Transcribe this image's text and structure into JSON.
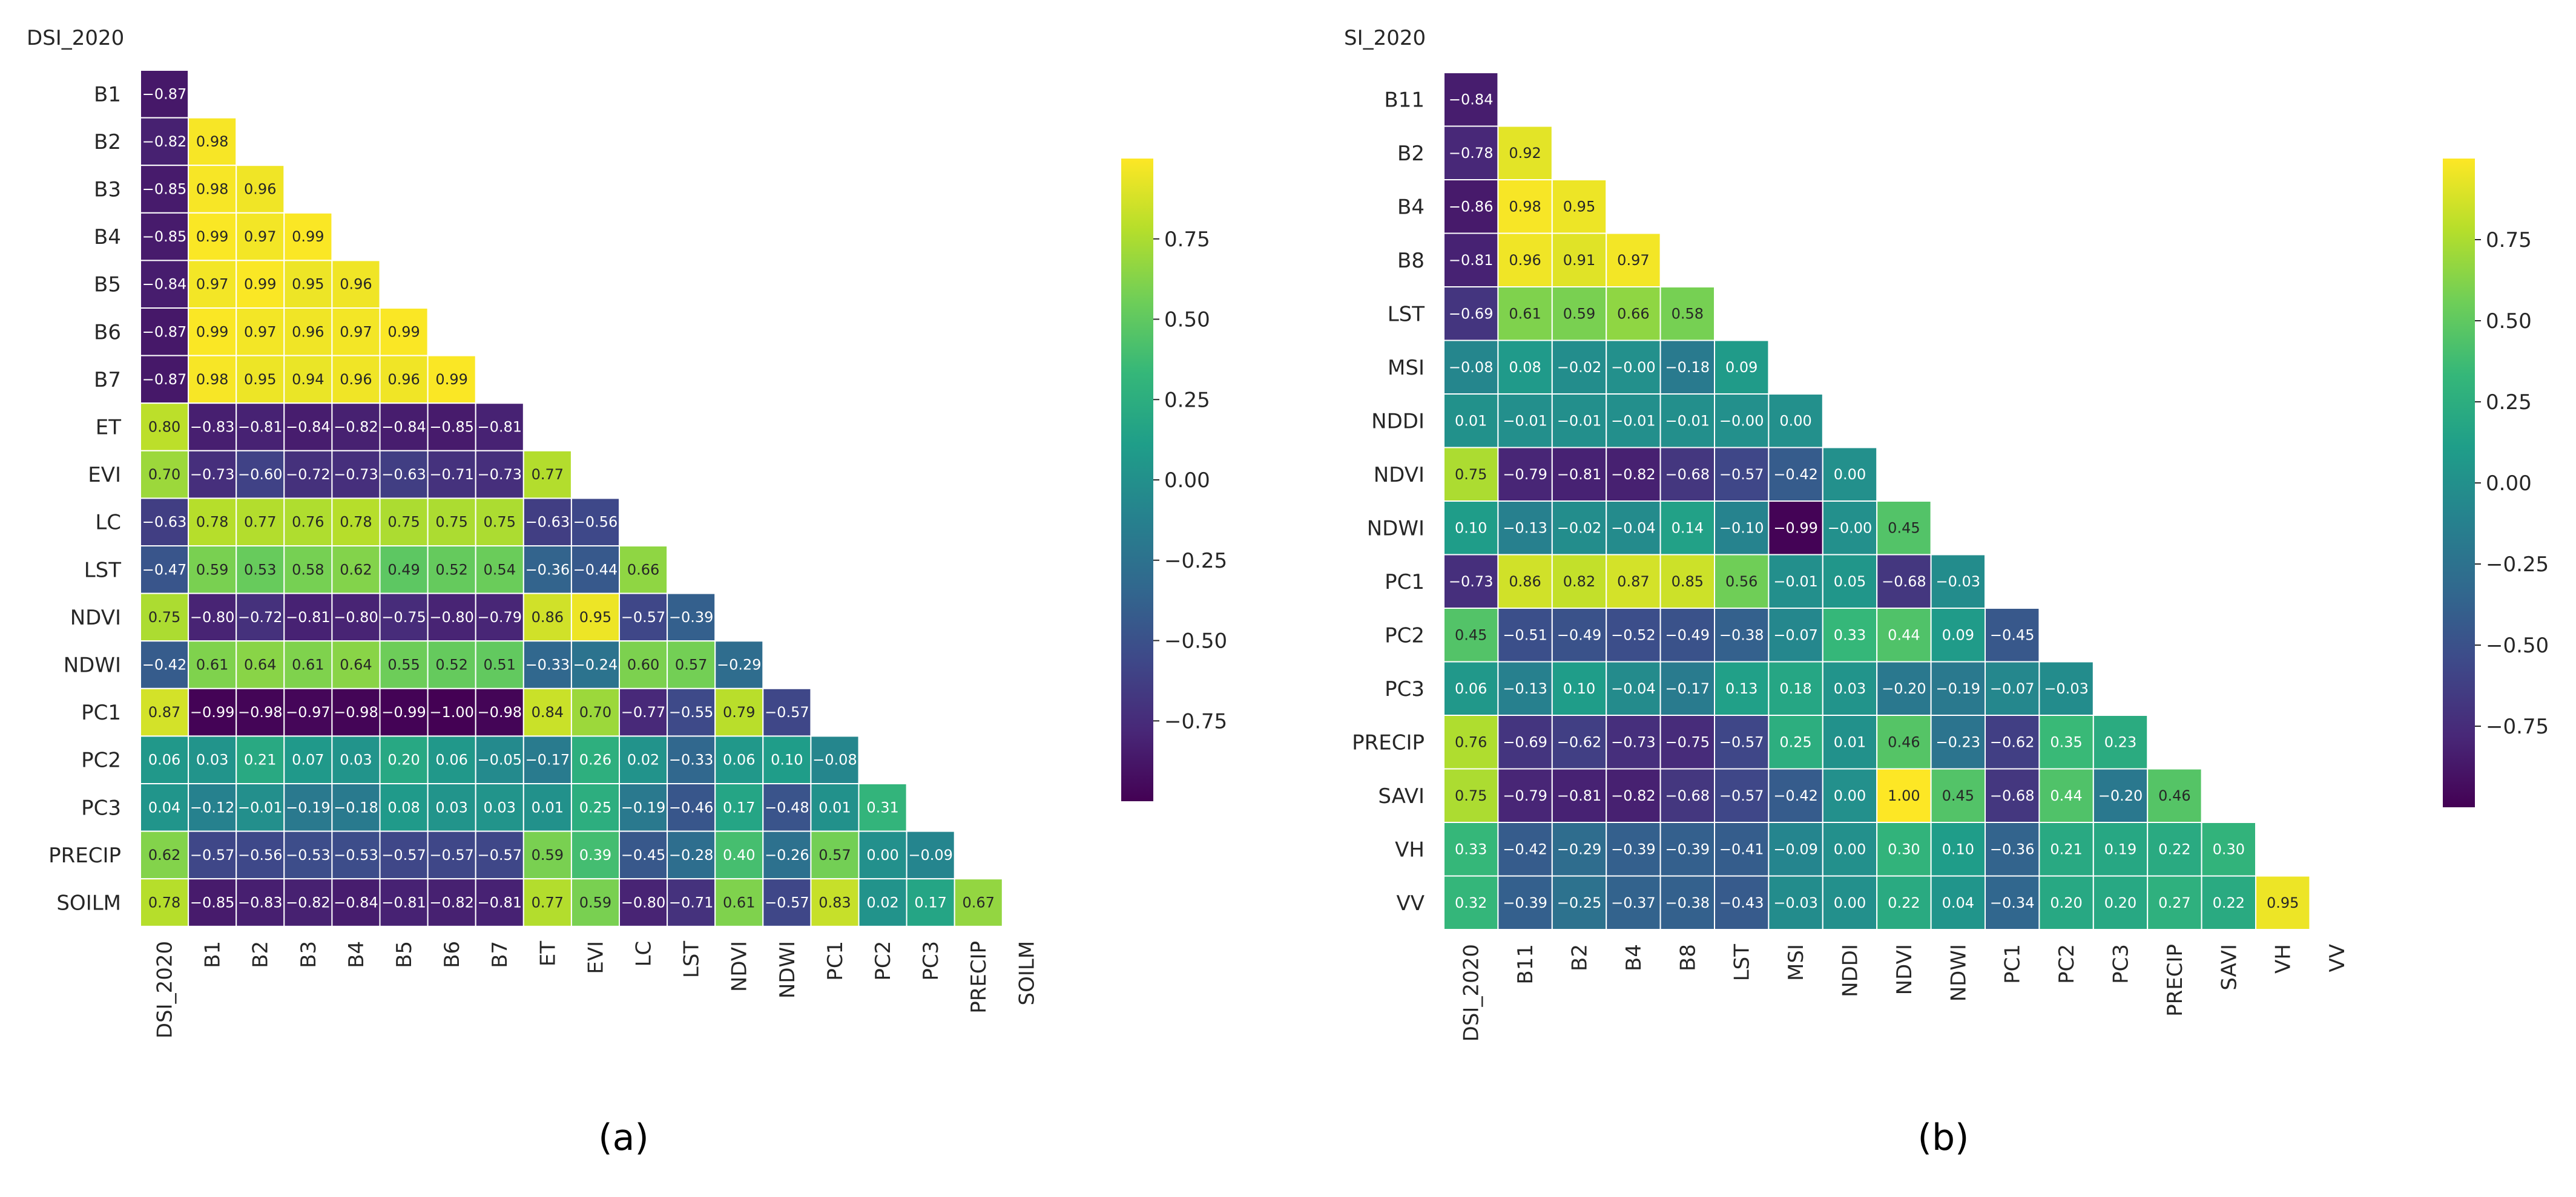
{
  "colors": {
    "viridis": [
      "#440154",
      "#482878",
      "#3e4989",
      "#31688e",
      "#26828e",
      "#1f9e89",
      "#35b779",
      "#6ece58",
      "#b5de2b",
      "#fde725"
    ],
    "cell_border": "#ffffff",
    "label_text": "#262626",
    "caption_text": "#000000"
  },
  "chart_data": [
    {
      "type": "heatmap",
      "caption": "(a)",
      "title": "DSI_2020",
      "value_range": [
        -1,
        1
      ],
      "colorbar_ticks": [
        "0.75",
        "0.50",
        "0.25",
        "0.00",
        "−0.25",
        "−0.50",
        "−0.75"
      ],
      "colorbar_tick_values": [
        0.75,
        0.5,
        0.25,
        0,
        -0.25,
        -0.5,
        -0.75
      ],
      "row_labels": [
        "B1",
        "B2",
        "B3",
        "B4",
        "B5",
        "B6",
        "B7",
        "ET",
        "EVI",
        "LC",
        "LST",
        "NDVI",
        "NDWI",
        "PC1",
        "PC2",
        "PC3",
        "PRECIP",
        "SOILM"
      ],
      "col_labels": [
        "DSI_2020",
        "B1",
        "B2",
        "B3",
        "B4",
        "B5",
        "B6",
        "B7",
        "ET",
        "EVI",
        "LC",
        "LST",
        "NDVI",
        "NDWI",
        "PC1",
        "PC2",
        "PC3",
        "PRECIP",
        "SOILM"
      ],
      "rows": [
        [
          "−0.87"
        ],
        [
          "−0.82",
          "0.98"
        ],
        [
          "−0.85",
          "0.98",
          "0.96"
        ],
        [
          "−0.85",
          "0.99",
          "0.97",
          "0.99"
        ],
        [
          "−0.84",
          "0.97",
          "0.99",
          "0.95",
          "0.96"
        ],
        [
          "−0.87",
          "0.99",
          "0.97",
          "0.96",
          "0.97",
          "0.99"
        ],
        [
          "−0.87",
          "0.98",
          "0.95",
          "0.94",
          "0.96",
          "0.96",
          "0.99"
        ],
        [
          "0.80",
          "−0.83",
          "−0.81",
          "−0.84",
          "−0.82",
          "−0.84",
          "−0.85",
          "−0.81"
        ],
        [
          "0.70",
          "−0.73",
          "−0.60",
          "−0.72",
          "−0.73",
          "−0.63",
          "−0.71",
          "−0.73",
          "0.77"
        ],
        [
          "−0.63",
          "0.78",
          "0.77",
          "0.76",
          "0.78",
          "0.75",
          "0.75",
          "0.75",
          "−0.63",
          "−0.56"
        ],
        [
          "−0.47",
          "0.59",
          "0.53",
          "0.58",
          "0.62",
          "0.49",
          "0.52",
          "0.54",
          "−0.36",
          "−0.44",
          "0.66"
        ],
        [
          "0.75",
          "−0.80",
          "−0.72",
          "−0.81",
          "−0.80",
          "−0.75",
          "−0.80",
          "−0.79",
          "0.86",
          "0.95",
          "−0.57",
          "−0.39"
        ],
        [
          "−0.42",
          "0.61",
          "0.64",
          "0.61",
          "0.64",
          "0.55",
          "0.52",
          "0.51",
          "−0.33",
          "−0.24",
          "0.60",
          "0.57",
          "−0.29"
        ],
        [
          "0.87",
          "−0.99",
          "−0.98",
          "−0.97",
          "−0.98",
          "−0.99",
          "−1.00",
          "−0.98",
          "0.84",
          "0.70",
          "−0.77",
          "−0.55",
          "0.79",
          "−0.57"
        ],
        [
          "0.06",
          "0.03",
          "0.21",
          "0.07",
          "0.03",
          "0.20",
          "0.06",
          "−0.05",
          "−0.17",
          "0.26",
          "0.02",
          "−0.33",
          "0.06",
          "0.10",
          "−0.08"
        ],
        [
          "0.04",
          "−0.12",
          "−0.01",
          "−0.19",
          "−0.18",
          "0.08",
          "0.03",
          "0.03",
          "0.01",
          "0.25",
          "−0.19",
          "−0.46",
          "0.17",
          "−0.48",
          "0.01",
          "0.31"
        ],
        [
          "0.62",
          "−0.57",
          "−0.56",
          "−0.53",
          "−0.53",
          "−0.57",
          "−0.57",
          "−0.57",
          "0.59",
          "0.39",
          "−0.45",
          "−0.28",
          "0.40",
          "−0.26",
          "0.57",
          "0.00",
          "−0.09"
        ],
        [
          "0.78",
          "−0.85",
          "−0.83",
          "−0.82",
          "−0.84",
          "−0.81",
          "−0.82",
          "−0.81",
          "0.77",
          "0.59",
          "−0.80",
          "−0.71",
          "0.61",
          "−0.57",
          "0.83",
          "0.02",
          "0.17",
          "0.67"
        ]
      ]
    },
    {
      "type": "heatmap",
      "caption": "(b)",
      "title": "SI_2020",
      "value_range": [
        -1,
        1
      ],
      "colorbar_ticks": [
        "0.75",
        "0.50",
        "0.25",
        "0.00",
        "−0.25",
        "−0.50",
        "−0.75"
      ],
      "colorbar_tick_values": [
        0.75,
        0.5,
        0.25,
        0,
        -0.25,
        -0.5,
        -0.75
      ],
      "row_labels": [
        "B11",
        "B2",
        "B4",
        "B8",
        "LST",
        "MSI",
        "NDDI",
        "NDVI",
        "NDWI",
        "PC1",
        "PC2",
        "PC3",
        "PRECIP",
        "SAVI",
        "VH",
        "VV"
      ],
      "col_labels": [
        "DSI_2020",
        "B11",
        "B2",
        "B4",
        "B8",
        "LST",
        "MSI",
        "NDDI",
        "NDVI",
        "NDWI",
        "PC1",
        "PC2",
        "PC3",
        "PRECIP",
        "SAVI",
        "VH",
        "VV"
      ],
      "rows": [
        [
          "−0.84"
        ],
        [
          "−0.78",
          "0.92"
        ],
        [
          "−0.86",
          "0.98",
          "0.95"
        ],
        [
          "−0.81",
          "0.96",
          "0.91",
          "0.97"
        ],
        [
          "−0.69",
          "0.61",
          "0.59",
          "0.66",
          "0.58"
        ],
        [
          "−0.08",
          "0.08",
          "−0.02",
          "−0.00",
          "−0.18",
          "0.09"
        ],
        [
          "0.01",
          "−0.01",
          "−0.01",
          "−0.01",
          "−0.01",
          "−0.00",
          "0.00"
        ],
        [
          "0.75",
          "−0.79",
          "−0.81",
          "−0.82",
          "−0.68",
          "−0.57",
          "−0.42",
          "0.00"
        ],
        [
          "0.10",
          "−0.13",
          "−0.02",
          "−0.04",
          "0.14",
          "−0.10",
          "−0.99",
          "−0.00",
          "0.45"
        ],
        [
          "−0.73",
          "0.86",
          "0.82",
          "0.87",
          "0.85",
          "0.56",
          "−0.01",
          "0.05",
          "−0.68",
          "−0.03"
        ],
        [
          "0.45",
          "−0.51",
          "−0.49",
          "−0.52",
          "−0.49",
          "−0.38",
          "−0.07",
          "0.33",
          "0.44",
          "0.09",
          "−0.45"
        ],
        [
          "0.06",
          "−0.13",
          "0.10",
          "−0.04",
          "−0.17",
          "0.13",
          "0.18",
          "0.03",
          "−0.20",
          "−0.19",
          "−0.07",
          "−0.03"
        ],
        [
          "0.76",
          "−0.69",
          "−0.62",
          "−0.73",
          "−0.75",
          "−0.57",
          "0.25",
          "0.01",
          "0.46",
          "−0.23",
          "−0.62",
          "0.35",
          "0.23"
        ],
        [
          "0.75",
          "−0.79",
          "−0.81",
          "−0.82",
          "−0.68",
          "−0.57",
          "−0.42",
          "0.00",
          "1.00",
          "0.45",
          "−0.68",
          "0.44",
          "−0.20",
          "0.46"
        ],
        [
          "0.33",
          "−0.42",
          "−0.29",
          "−0.39",
          "−0.39",
          "−0.41",
          "−0.09",
          "0.00",
          "0.30",
          "0.10",
          "−0.36",
          "0.21",
          "0.19",
          "0.22",
          "0.30"
        ],
        [
          "0.32",
          "−0.39",
          "−0.25",
          "−0.37",
          "−0.38",
          "−0.43",
          "−0.03",
          "0.00",
          "0.22",
          "0.04",
          "−0.34",
          "0.20",
          "0.20",
          "0.27",
          "0.22",
          "0.95"
        ]
      ]
    }
  ]
}
